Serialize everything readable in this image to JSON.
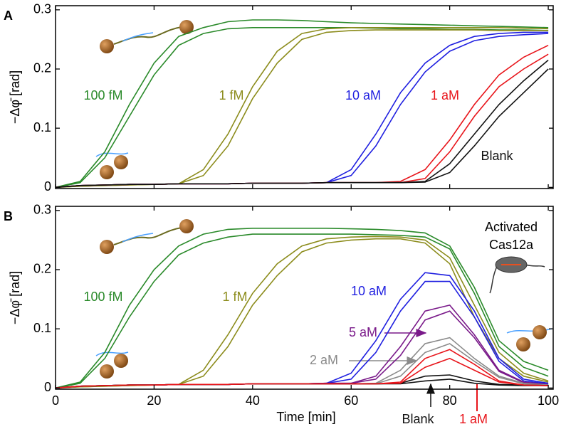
{
  "chart_data": [
    {
      "type": "line",
      "label": "A",
      "ylabel": "−Δφ̄ [rad]",
      "x": [
        0,
        5,
        10,
        15,
        20,
        25,
        30,
        35,
        40,
        45,
        50,
        55,
        60,
        65,
        70,
        75,
        80,
        85,
        90,
        95,
        100
      ],
      "xlim": [
        0,
        101
      ],
      "ylim": [
        -0.002,
        0.307
      ],
      "xticks": [
        0,
        20,
        40,
        60,
        80,
        100
      ],
      "yticks": [
        0,
        0.1,
        0.2,
        0.3
      ],
      "series": [
        {
          "name": "100 fM",
          "color": "#2a8a2a",
          "curves": [
            [
              0,
              0.01,
              0.06,
              0.14,
              0.21,
              0.255,
              0.27,
              0.28,
              0.283,
              0.283,
              0.282,
              0.28,
              0.278,
              0.277,
              0.276,
              0.275,
              0.274,
              0.273,
              0.272,
              0.271,
              0.27
            ],
            [
              0,
              0.008,
              0.05,
              0.12,
              0.19,
              0.24,
              0.26,
              0.268,
              0.27,
              0.27,
              0.27,
              0.27,
              0.27,
              0.269,
              0.268,
              0.268,
              0.267,
              0.267,
              0.266,
              0.266,
              0.265
            ]
          ]
        },
        {
          "name": "1 fM",
          "color": "#8c8c1c",
          "curves": [
            [
              0,
              0.002,
              0.003,
              0.004,
              0.005,
              0.006,
              0.03,
              0.09,
              0.17,
              0.23,
              0.26,
              0.268,
              0.27,
              0.27,
              0.27,
              0.27,
              0.27,
              0.27,
              0.27,
              0.269,
              0.268
            ],
            [
              0,
              0.002,
              0.003,
              0.004,
              0.005,
              0.006,
              0.02,
              0.07,
              0.15,
              0.21,
              0.25,
              0.262,
              0.265,
              0.266,
              0.266,
              0.266,
              0.266,
              0.266,
              0.265,
              0.265,
              0.265
            ]
          ]
        },
        {
          "name": "10 aM",
          "color": "#1f1fe0",
          "curves": [
            [
              0,
              0.003,
              0.004,
              0.005,
              0.005,
              0.006,
              0.006,
              0.006,
              0.007,
              0.007,
              0.007,
              0.008,
              0.03,
              0.09,
              0.16,
              0.21,
              0.24,
              0.255,
              0.26,
              0.262,
              0.262
            ],
            [
              0,
              0.003,
              0.004,
              0.005,
              0.005,
              0.006,
              0.006,
              0.006,
              0.007,
              0.007,
              0.007,
              0.008,
              0.02,
              0.07,
              0.14,
              0.195,
              0.23,
              0.248,
              0.255,
              0.258,
              0.26
            ]
          ]
        },
        {
          "name": "1 aM",
          "color": "#e8141a",
          "curves": [
            [
              0,
              0.003,
              0.004,
              0.005,
              0.005,
              0.006,
              0.006,
              0.006,
              0.007,
              0.007,
              0.007,
              0.008,
              0.008,
              0.008,
              0.01,
              0.03,
              0.08,
              0.14,
              0.19,
              0.22,
              0.24
            ],
            [
              0,
              0.003,
              0.004,
              0.005,
              0.005,
              0.006,
              0.006,
              0.006,
              0.007,
              0.007,
              0.007,
              0.008,
              0.008,
              0.008,
              0.008,
              0.015,
              0.06,
              0.12,
              0.17,
              0.2,
              0.225
            ]
          ]
        },
        {
          "name": "Blank",
          "color": "#111111",
          "curves": [
            [
              0,
              0.003,
              0.004,
              0.005,
              0.005,
              0.006,
              0.006,
              0.006,
              0.007,
              0.007,
              0.007,
              0.008,
              0.008,
              0.008,
              0.008,
              0.01,
              0.04,
              0.09,
              0.14,
              0.18,
              0.215
            ],
            [
              0,
              0.003,
              0.004,
              0.005,
              0.005,
              0.006,
              0.006,
              0.006,
              0.007,
              0.007,
              0.007,
              0.008,
              0.008,
              0.008,
              0.008,
              0.009,
              0.025,
              0.07,
              0.12,
              0.16,
              0.2
            ]
          ]
        }
      ]
    },
    {
      "type": "line",
      "label": "B",
      "ylabel": "−Δφ̄ [rad]",
      "xlabel": "Time [min]",
      "annotation": [
        "Activated",
        "Cas12a"
      ],
      "x": [
        0,
        5,
        10,
        15,
        20,
        25,
        30,
        35,
        40,
        45,
        50,
        55,
        60,
        65,
        70,
        75,
        80,
        85,
        90,
        95,
        100
      ],
      "xlim": [
        0,
        101
      ],
      "ylim": [
        -0.002,
        0.307
      ],
      "xticks": [
        0,
        20,
        40,
        60,
        80,
        100
      ],
      "yticks": [
        0,
        0.1,
        0.2,
        0.3
      ],
      "series": [
        {
          "name": "100 fM",
          "color": "#2a8a2a",
          "curves": [
            [
              0,
              0.01,
              0.06,
              0.14,
              0.2,
              0.24,
              0.26,
              0.268,
              0.27,
              0.27,
              0.27,
              0.27,
              0.269,
              0.268,
              0.266,
              0.262,
              0.24,
              0.17,
              0.08,
              0.045,
              0.03
            ],
            [
              0,
              0.008,
              0.05,
              0.12,
              0.18,
              0.225,
              0.245,
              0.255,
              0.26,
              0.26,
              0.26,
              0.26,
              0.26,
              0.259,
              0.258,
              0.255,
              0.235,
              0.16,
              0.07,
              0.035,
              0.02
            ]
          ]
        },
        {
          "name": "1 fM",
          "color": "#8c8c1c",
          "curves": [
            [
              0,
              0.002,
              0.003,
              0.004,
              0.005,
              0.006,
              0.03,
              0.09,
              0.16,
              0.21,
              0.24,
              0.252,
              0.255,
              0.256,
              0.255,
              0.25,
              0.22,
              0.14,
              0.06,
              0.025,
              0.012
            ],
            [
              0,
              0.002,
              0.003,
              0.004,
              0.005,
              0.006,
              0.02,
              0.07,
              0.14,
              0.19,
              0.23,
              0.245,
              0.25,
              0.252,
              0.252,
              0.245,
              0.21,
              0.12,
              0.05,
              0.02,
              0.01
            ]
          ]
        },
        {
          "name": "10 aM",
          "color": "#1f1fe0",
          "curves": [
            [
              0,
              0.003,
              0.004,
              0.005,
              0.005,
              0.006,
              0.006,
              0.006,
              0.007,
              0.007,
              0.007,
              0.008,
              0.025,
              0.08,
              0.15,
              0.195,
              0.19,
              0.13,
              0.05,
              0.015,
              0.008
            ],
            [
              0,
              0.003,
              0.004,
              0.005,
              0.005,
              0.006,
              0.006,
              0.006,
              0.007,
              0.007,
              0.007,
              0.008,
              0.015,
              0.06,
              0.13,
              0.18,
              0.18,
              0.12,
              0.045,
              0.012,
              0.007
            ]
          ]
        },
        {
          "name": "5 aM",
          "color": "#7a1a8a",
          "curves": [
            [
              0,
              0.003,
              0.004,
              0.005,
              0.005,
              0.006,
              0.006,
              0.006,
              0.007,
              0.007,
              0.007,
              0.008,
              0.008,
              0.02,
              0.07,
              0.13,
              0.14,
              0.09,
              0.03,
              0.01,
              0.006
            ],
            [
              0,
              0.003,
              0.004,
              0.005,
              0.005,
              0.006,
              0.006,
              0.006,
              0.007,
              0.007,
              0.007,
              0.008,
              0.008,
              0.015,
              0.055,
              0.115,
              0.13,
              0.085,
              0.028,
              0.009,
              0.005
            ]
          ]
        },
        {
          "name": "2 aM",
          "color": "#8a8a8a",
          "curves": [
            [
              0,
              0.003,
              0.004,
              0.005,
              0.005,
              0.006,
              0.006,
              0.006,
              0.007,
              0.007,
              0.007,
              0.007,
              0.007,
              0.008,
              0.03,
              0.075,
              0.085,
              0.05,
              0.02,
              0.008,
              0.005
            ],
            [
              0,
              0.003,
              0.004,
              0.005,
              0.005,
              0.006,
              0.006,
              0.006,
              0.007,
              0.007,
              0.007,
              0.007,
              0.007,
              0.007,
              0.02,
              0.06,
              0.075,
              0.045,
              0.018,
              0.007,
              0.005
            ]
          ]
        },
        {
          "name": "Blank",
          "color": "#111111",
          "curves": [
            [
              0,
              0.003,
              0.004,
              0.005,
              0.005,
              0.006,
              0.006,
              0.006,
              0.007,
              0.007,
              0.007,
              0.007,
              0.007,
              0.007,
              0.008,
              0.02,
              0.022,
              0.012,
              0.006,
              0.005,
              0.004
            ],
            [
              0,
              0.003,
              0.004,
              0.005,
              0.005,
              0.006,
              0.006,
              0.006,
              0.007,
              0.007,
              0.007,
              0.007,
              0.007,
              0.007,
              0.007,
              0.012,
              0.015,
              0.008,
              0.005,
              0.004,
              0.004
            ]
          ]
        },
        {
          "name": "1 aM",
          "color": "#e8141a",
          "curves": [
            [
              0,
              0.003,
              0.004,
              0.005,
              0.005,
              0.006,
              0.006,
              0.006,
              0.007,
              0.007,
              0.007,
              0.007,
              0.007,
              0.007,
              0.01,
              0.05,
              0.065,
              0.04,
              0.012,
              0.005,
              0.004
            ],
            [
              0,
              0.003,
              0.004,
              0.005,
              0.005,
              0.006,
              0.006,
              0.006,
              0.007,
              0.007,
              0.007,
              0.007,
              0.007,
              0.007,
              0.008,
              0.035,
              0.05,
              0.03,
              0.01,
              0.005,
              0.004
            ]
          ]
        }
      ]
    }
  ]
}
